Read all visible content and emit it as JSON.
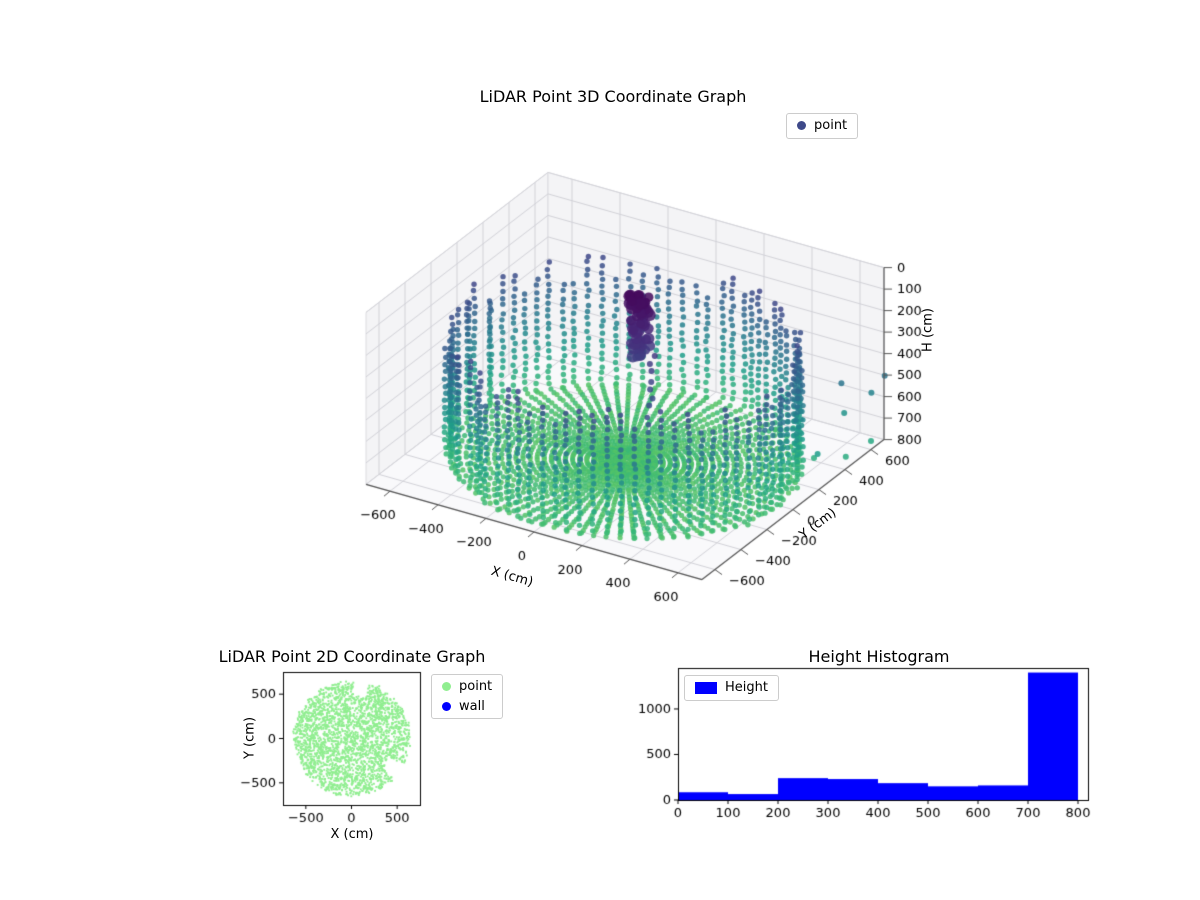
{
  "chart_data": [
    {
      "type": "scatter3d",
      "title": "LiDAR Point 3D Coordinate Graph",
      "xlabel": "X (cm)",
      "ylabel": "Y (cm)",
      "zlabel": "H (cm)",
      "xlim": [
        -700,
        700
      ],
      "ylim": [
        -700,
        700
      ],
      "zlim": [
        0,
        800
      ],
      "z_axis_inverted": true,
      "xticks": [
        -600,
        -400,
        -200,
        0,
        200,
        400,
        600
      ],
      "yticks": [
        -600,
        -400,
        -200,
        0,
        200,
        400,
        600
      ],
      "zticks": [
        0,
        100,
        200,
        300,
        400,
        500,
        600,
        700,
        800
      ],
      "legend": [
        {
          "label": "point",
          "color": "#3e4989"
        }
      ],
      "colormap": "viridis",
      "colormap_stops": [
        [
          0,
          "#440154"
        ],
        [
          0.13,
          "#482878"
        ],
        [
          0.25,
          "#3e4989"
        ],
        [
          0.38,
          "#31688e"
        ],
        [
          0.5,
          "#26828e"
        ],
        [
          0.62,
          "#1f9e89"
        ],
        [
          0.75,
          "#35b779"
        ],
        [
          0.85,
          "#6ece58"
        ],
        [
          0.93,
          "#b5de2b"
        ],
        [
          1,
          "#fde725"
        ]
      ],
      "structure": {
        "wall_cylinder": {
          "radius_cm": 650,
          "columns": 80,
          "top_h_range_cm": [
            200,
            340
          ],
          "bottom_h_cm": 800,
          "vertical_step_cm": 32
        },
        "floor_disk": {
          "h_cm": 800,
          "radius_cm": 640,
          "spokes": 80,
          "radial_step_cm": 26,
          "dense_center_radius_cm": 110
        },
        "ceiling_cluster": {
          "center_xy_cm": [
            45,
            25
          ],
          "h_range_cm": [
            30,
            300
          ],
          "points": 70
        },
        "hanging_trail": {
          "xy_cm": [
            85,
            45
          ],
          "h_range_cm": [
            300,
            560
          ]
        },
        "outliers_xyh_cm": [
          [
            620,
            520,
            480
          ],
          [
            680,
            640,
            560
          ],
          [
            700,
            600,
            760
          ],
          [
            560,
            420,
            800
          ],
          [
            640,
            300,
            700
          ],
          [
            730,
            650,
            470
          ],
          [
            610,
            560,
            640
          ],
          [
            660,
            480,
            790
          ]
        ]
      }
    },
    {
      "type": "scatter",
      "title": "LiDAR Point 2D Coordinate Graph",
      "xlabel": "X (cm)",
      "ylabel": "Y (cm)",
      "xlim": [
        -750,
        750
      ],
      "ylim": [
        -750,
        750
      ],
      "xticks": [
        -500,
        0,
        500
      ],
      "yticks": [
        -500,
        0,
        500
      ],
      "legend": [
        {
          "label": "point",
          "color": "#90EE90"
        },
        {
          "label": "wall",
          "color": "#0000FF"
        }
      ],
      "series": [
        {
          "name": "point",
          "color": "#90EE90",
          "shape": "filled disk of points",
          "center_cm": [
            0,
            0
          ],
          "radius_cm": 650,
          "notches_deg": [
            [
              72,
              88
            ],
            [
              -44,
              -27
            ]
          ]
        },
        {
          "name": "wall",
          "color": "#0000FF",
          "note": "not visible at this scale"
        }
      ]
    },
    {
      "type": "histogram",
      "title": "Height Histogram",
      "legend": [
        {
          "label": "Height",
          "color": "#0000FF"
        }
      ],
      "bin_edges": [
        0,
        100,
        200,
        300,
        400,
        500,
        600,
        700,
        800
      ],
      "values": [
        85,
        65,
        240,
        230,
        185,
        150,
        160,
        1400
      ],
      "xticks": [
        0,
        100,
        200,
        300,
        400,
        500,
        600,
        700,
        800
      ],
      "yticks": [
        0,
        500,
        1000
      ],
      "xlim": [
        0,
        820
      ],
      "ylim": [
        0,
        1450
      ],
      "bar_color": "#0000FF"
    }
  ]
}
